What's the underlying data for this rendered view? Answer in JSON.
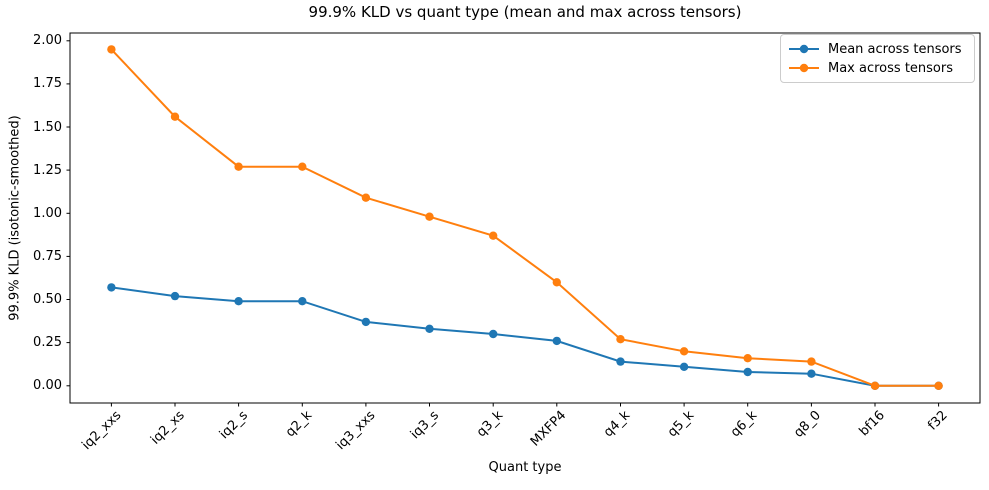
{
  "figure": {
    "title": "99.9% KLD vs quant type (mean and max across tensors)",
    "xlabel": "Quant type",
    "ylabel": "99.9% KLD (isotonic-smoothed)"
  },
  "legend": {
    "position": "upper right",
    "entries": [
      {
        "label": "Mean across tensors",
        "color": "#1f77b4"
      },
      {
        "label": "Max across tensors",
        "color": "#ff7f0e"
      }
    ]
  },
  "chart_data": {
    "type": "line",
    "title": "99.9% KLD vs quant type (mean and max across tensors)",
    "xlabel": "Quant type",
    "ylabel": "99.9% KLD (isotonic-smoothed)",
    "categories": [
      "iq2_xxs",
      "iq2_xs",
      "iq2_s",
      "q2_k",
      "iq3_xxs",
      "iq3_s",
      "q3_k",
      "MXFP4",
      "q4_k",
      "q5_k",
      "q6_k",
      "q8_0",
      "bf16",
      "f32"
    ],
    "series": [
      {
        "name": "Mean across tensors",
        "color": "#1f77b4",
        "values": [
          0.57,
          0.52,
          0.49,
          0.49,
          0.37,
          0.33,
          0.3,
          0.26,
          0.14,
          0.11,
          0.08,
          0.07,
          0.0,
          0.0
        ]
      },
      {
        "name": "Max across tensors",
        "color": "#ff7f0e",
        "values": [
          1.95,
          1.56,
          1.27,
          1.27,
          1.09,
          0.98,
          0.87,
          0.6,
          0.27,
          0.2,
          0.16,
          0.14,
          0.0,
          0.0
        ]
      }
    ],
    "y_ticks": [
      0.0,
      0.25,
      0.5,
      0.75,
      1.0,
      1.25,
      1.5,
      1.75,
      2.0
    ],
    "y_tick_labels": [
      "0.00",
      "0.25",
      "0.50",
      "0.75",
      "1.00",
      "1.25",
      "1.50",
      "1.75",
      "2.00"
    ],
    "ylim": [
      -0.1,
      2.045
    ],
    "grid": false,
    "legend_position": "upper right",
    "marker": "circle",
    "spine_color": "#000000"
  }
}
